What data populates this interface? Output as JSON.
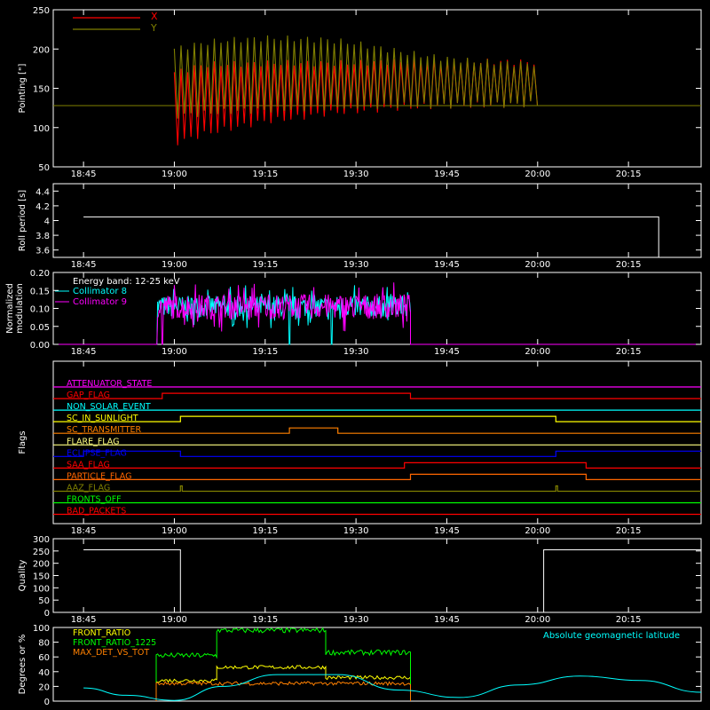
{
  "chart_data": [
    {
      "type": "line",
      "ylabel": "Pointing [\"]",
      "ylim": [
        50,
        250
      ],
      "yticks": [
        50,
        100,
        150,
        200,
        250
      ],
      "xticks": [
        "18:45",
        "19:00",
        "19:15",
        "19:30",
        "19:45",
        "20:00",
        "20:15"
      ],
      "legend_position": "top-left",
      "series": [
        {
          "name": "X",
          "color": "#ff0000",
          "envelope_time": [
            "19:00",
            "19:05",
            "19:10",
            "19:15",
            "19:20",
            "19:25",
            "19:30",
            "19:35",
            "19:40",
            "19:45",
            "19:50",
            "19:55",
            "20:00"
          ],
          "low": [
            80,
            92,
            100,
            108,
            112,
            118,
            121,
            124,
            126,
            128,
            128,
            129,
            130
          ],
          "high": [
            170,
            180,
            181,
            182,
            182,
            182,
            182,
            184,
            184,
            184,
            184,
            184,
            183
          ]
        },
        {
          "name": "Y",
          "color": "#808000",
          "envelope_time": [
            "19:00",
            "19:05",
            "19:10",
            "19:15",
            "19:20",
            "19:25",
            "19:30",
            "19:35",
            "19:40",
            "19:45",
            "19:50",
            "19:55",
            "20:00"
          ],
          "low": [
            115,
            118,
            121,
            122,
            124,
            126,
            127,
            128,
            128,
            128,
            129,
            129,
            130
          ],
          "high": [
            200,
            208,
            212,
            214,
            213,
            212,
            207,
            200,
            193,
            188,
            184,
            182,
            181
          ]
        }
      ],
      "baseline": 128
    },
    {
      "type": "line",
      "ylabel": "Roll period [s]",
      "ylim": [
        3.5,
        4.5
      ],
      "yticks": [
        3.6,
        3.8,
        4.0,
        4.2,
        4.4
      ],
      "xticks": [
        "18:45",
        "19:00",
        "19:15",
        "19:30",
        "19:45",
        "20:00",
        "20:15"
      ],
      "series": [
        {
          "color": "#ffffff",
          "x": [
            "18:45",
            "20:20",
            "20:20"
          ],
          "y": [
            4.05,
            4.05,
            3.5
          ]
        }
      ]
    },
    {
      "type": "line",
      "ylabel": "Normalized modulation",
      "ylim": [
        0,
        0.2
      ],
      "yticks": [
        "0.00",
        "0.05",
        "0.10",
        "0.15",
        "0.20"
      ],
      "xticks": [
        "18:45",
        "19:00",
        "19:15",
        "19:30",
        "19:45",
        "20:00",
        "20:15"
      ],
      "annotation": "Energy band: 12-25 keV",
      "legend_position": "top-left",
      "active_range": [
        "18:57",
        "19:39"
      ],
      "series": [
        {
          "name": "Collimator 8",
          "color": "#00ffff",
          "mean": 0.105,
          "spread": 0.03,
          "dropouts": [
            "18:57",
            "19:19",
            "19:26"
          ]
        },
        {
          "name": "Collimator 9",
          "color": "#ff00ff",
          "mean": 0.105,
          "spread": 0.035,
          "dropouts": [
            "18:57",
            "18:58"
          ]
        }
      ]
    },
    {
      "type": "line",
      "ylabel": "Flags",
      "xticks": [
        "18:45",
        "19:00",
        "19:15",
        "19:30",
        "19:45",
        "20:00",
        "20:15"
      ],
      "flags": [
        {
          "name": "ATTENUATOR_STATE",
          "color": "#ff00ff",
          "segments": []
        },
        {
          "name": "GAP_FLAG",
          "color": "#ff0000",
          "segments": [
            [
              "18:58",
              "19:39"
            ]
          ]
        },
        {
          "name": "NON_SOLAR_EVENT",
          "color": "#00ffff",
          "segments": []
        },
        {
          "name": "SC_IN_SUNLIGHT",
          "color": "#ffff00",
          "segments": [
            [
              "19:01",
              "20:03"
            ]
          ]
        },
        {
          "name": "SC_TRANSMITTER",
          "color": "#ff8000",
          "segments": [
            [
              "19:19",
              "19:27"
            ]
          ]
        },
        {
          "name": "FLARE_FLAG",
          "color": "#ffff80",
          "segments": []
        },
        {
          "name": "ECLIPSE_FLAG",
          "color": "#0000ff",
          "segments": [
            [
              "18:45",
              "19:01"
            ],
            [
              "20:03",
              "20:27"
            ]
          ]
        },
        {
          "name": "SAA_FLAG",
          "color": "#ff0000",
          "segments": [
            [
              "19:38",
              "20:08"
            ]
          ]
        },
        {
          "name": "PARTICLE_FLAG",
          "color": "#ff6600",
          "segments": [
            [
              "19:39",
              "20:08"
            ]
          ]
        },
        {
          "name": "AAZ_FLAG",
          "color": "#808000",
          "segments": [
            [
              "19:01",
              "19:01"
            ],
            [
              "20:03",
              "20:03"
            ]
          ]
        },
        {
          "name": "FRONTS_OFF",
          "color": "#00ff00",
          "segments": []
        },
        {
          "name": "BAD_PACKETS",
          "color": "#ff0000",
          "segments": []
        }
      ]
    },
    {
      "type": "line",
      "ylabel": "Quality",
      "ylim": [
        0,
        300
      ],
      "yticks": [
        0,
        50,
        100,
        150,
        200,
        250,
        300
      ],
      "xticks": [
        "18:45",
        "19:00",
        "19:15",
        "19:30",
        "19:45",
        "20:00",
        "20:15"
      ],
      "series": [
        {
          "color": "#ffffff",
          "x": [
            "18:45",
            "19:01",
            "19:01",
            "20:01",
            "20:01",
            "20:27"
          ],
          "y": [
            255,
            255,
            0,
            0,
            255,
            255
          ]
        }
      ]
    },
    {
      "type": "line",
      "ylabel": "Degrees or %",
      "ylim": [
        0,
        100
      ],
      "yticks": [
        0,
        20,
        40,
        60,
        80,
        100
      ],
      "legend_position": "top-left",
      "annotation": "Absolute geomagnetic latitude",
      "annotation_color": "#00ffff",
      "series": [
        {
          "name": "FRONT_RATIO",
          "color": "#ffff00",
          "segments": [
            [
              "18:57",
              "19:07",
              28
            ],
            [
              "19:07",
              "19:25",
              46
            ],
            [
              "19:25",
              "19:39",
              32
            ]
          ]
        },
        {
          "name": "FRONT_RATIO_1225",
          "color": "#00ff00",
          "segments": [
            [
              "18:57",
              "19:07",
              62
            ],
            [
              "19:07",
              "19:25",
              96
            ],
            [
              "19:25",
              "19:39",
              66
            ]
          ]
        },
        {
          "name": "MAX_DET_VS_TOT",
          "color": "#ff8000",
          "segments": [
            [
              "18:57",
              "19:39",
              24
            ]
          ]
        },
        {
          "name": "Absolute geomagnetic latitude",
          "color": "#00ffff",
          "x": [
            "18:45",
            "18:52",
            "19:00",
            "19:08",
            "19:17",
            "19:27",
            "19:37",
            "19:47",
            "19:57",
            "20:07",
            "20:17",
            "20:27"
          ],
          "y": [
            18,
            8,
            1,
            20,
            36,
            36,
            15,
            5,
            22,
            34,
            28,
            12
          ]
        }
      ]
    }
  ]
}
